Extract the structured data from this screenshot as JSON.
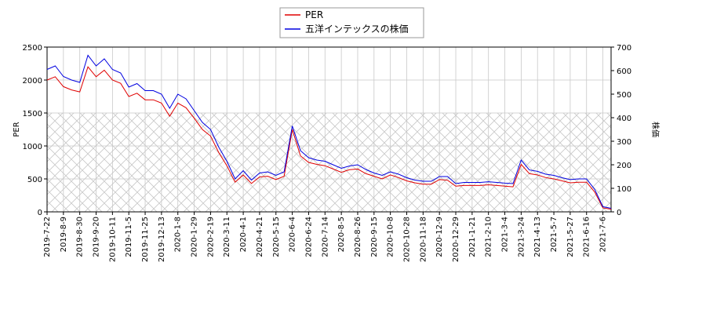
{
  "chart_data": {
    "type": "line",
    "ylabel": "PER",
    "y2label": "株価",
    "categories": [
      "2019-7-22",
      null,
      "2019-8-9",
      null,
      "2019-8-30",
      null,
      "2019-9-20",
      null,
      "2019-10-11",
      null,
      "2019-11-5",
      null,
      "2019-11-25",
      null,
      "2019-12-13",
      null,
      "2020-1-8",
      null,
      "2020-1-29",
      null,
      "2020-2-19",
      null,
      "2020-3-11",
      null,
      "2020-4-1",
      null,
      "2020-4-21",
      null,
      "2020-5-15",
      null,
      "2020-6-4",
      null,
      "2020-6-24",
      null,
      "2020-7-14",
      null,
      "2020-8-5",
      null,
      "2020-8-26",
      null,
      "2020-9-15",
      null,
      "2020-10-8",
      null,
      "2020-10-28",
      null,
      "2020-11-18",
      null,
      "2020-12-9",
      null,
      "2020-12-29",
      null,
      "2021-1-21",
      null,
      "2021-2-10",
      null,
      "2021-3-4",
      null,
      "2021-3-24",
      null,
      "2021-4-13",
      null,
      "2021-5-7",
      null,
      "2021-5-27",
      null,
      "2021-6-16",
      null,
      "2021-7-6",
      null
    ],
    "series": [
      {
        "name": "PER",
        "color": "#e00000",
        "axis": "y",
        "values": [
          2000,
          2050,
          1900,
          1850,
          1820,
          2200,
          2050,
          2150,
          2000,
          1950,
          1750,
          1800,
          1700,
          1700,
          1650,
          1450,
          1650,
          1580,
          1420,
          1250,
          1150,
          900,
          700,
          450,
          560,
          430,
          530,
          540,
          490,
          540,
          1250,
          850,
          750,
          720,
          700,
          650,
          600,
          640,
          650,
          580,
          540,
          500,
          560,
          520,
          470,
          440,
          420,
          420,
          490,
          480,
          390,
          400,
          400,
          400,
          410,
          400,
          390,
          380,
          720,
          580,
          560,
          520,
          500,
          470,
          440,
          450,
          450,
          300,
          60,
          40
        ]
      },
      {
        "name": "五洋インテックスの株価",
        "color": "#0000e0",
        "axis": "y2",
        "values": [
          605,
          620,
          575,
          560,
          550,
          665,
          620,
          650,
          605,
          590,
          530,
          545,
          515,
          515,
          500,
          440,
          500,
          480,
          430,
          380,
          350,
          275,
          215,
          140,
          175,
          135,
          165,
          170,
          155,
          170,
          365,
          260,
          230,
          220,
          215,
          200,
          185,
          195,
          200,
          180,
          165,
          155,
          170,
          160,
          145,
          135,
          130,
          130,
          150,
          150,
          120,
          125,
          125,
          125,
          128,
          125,
          122,
          120,
          220,
          178,
          172,
          160,
          155,
          145,
          137,
          140,
          140,
          95,
          22,
          15
        ]
      }
    ],
    "ylim": [
      0,
      2500
    ],
    "yticks": [
      0,
      500,
      1000,
      1500,
      2000,
      2500
    ],
    "y2lim": [
      0,
      700
    ],
    "y2ticks": [
      0,
      100,
      200,
      300,
      400,
      500,
      600,
      700
    ],
    "hatch_band": [
      0,
      1500
    ],
    "grid": true,
    "legend": "top"
  }
}
